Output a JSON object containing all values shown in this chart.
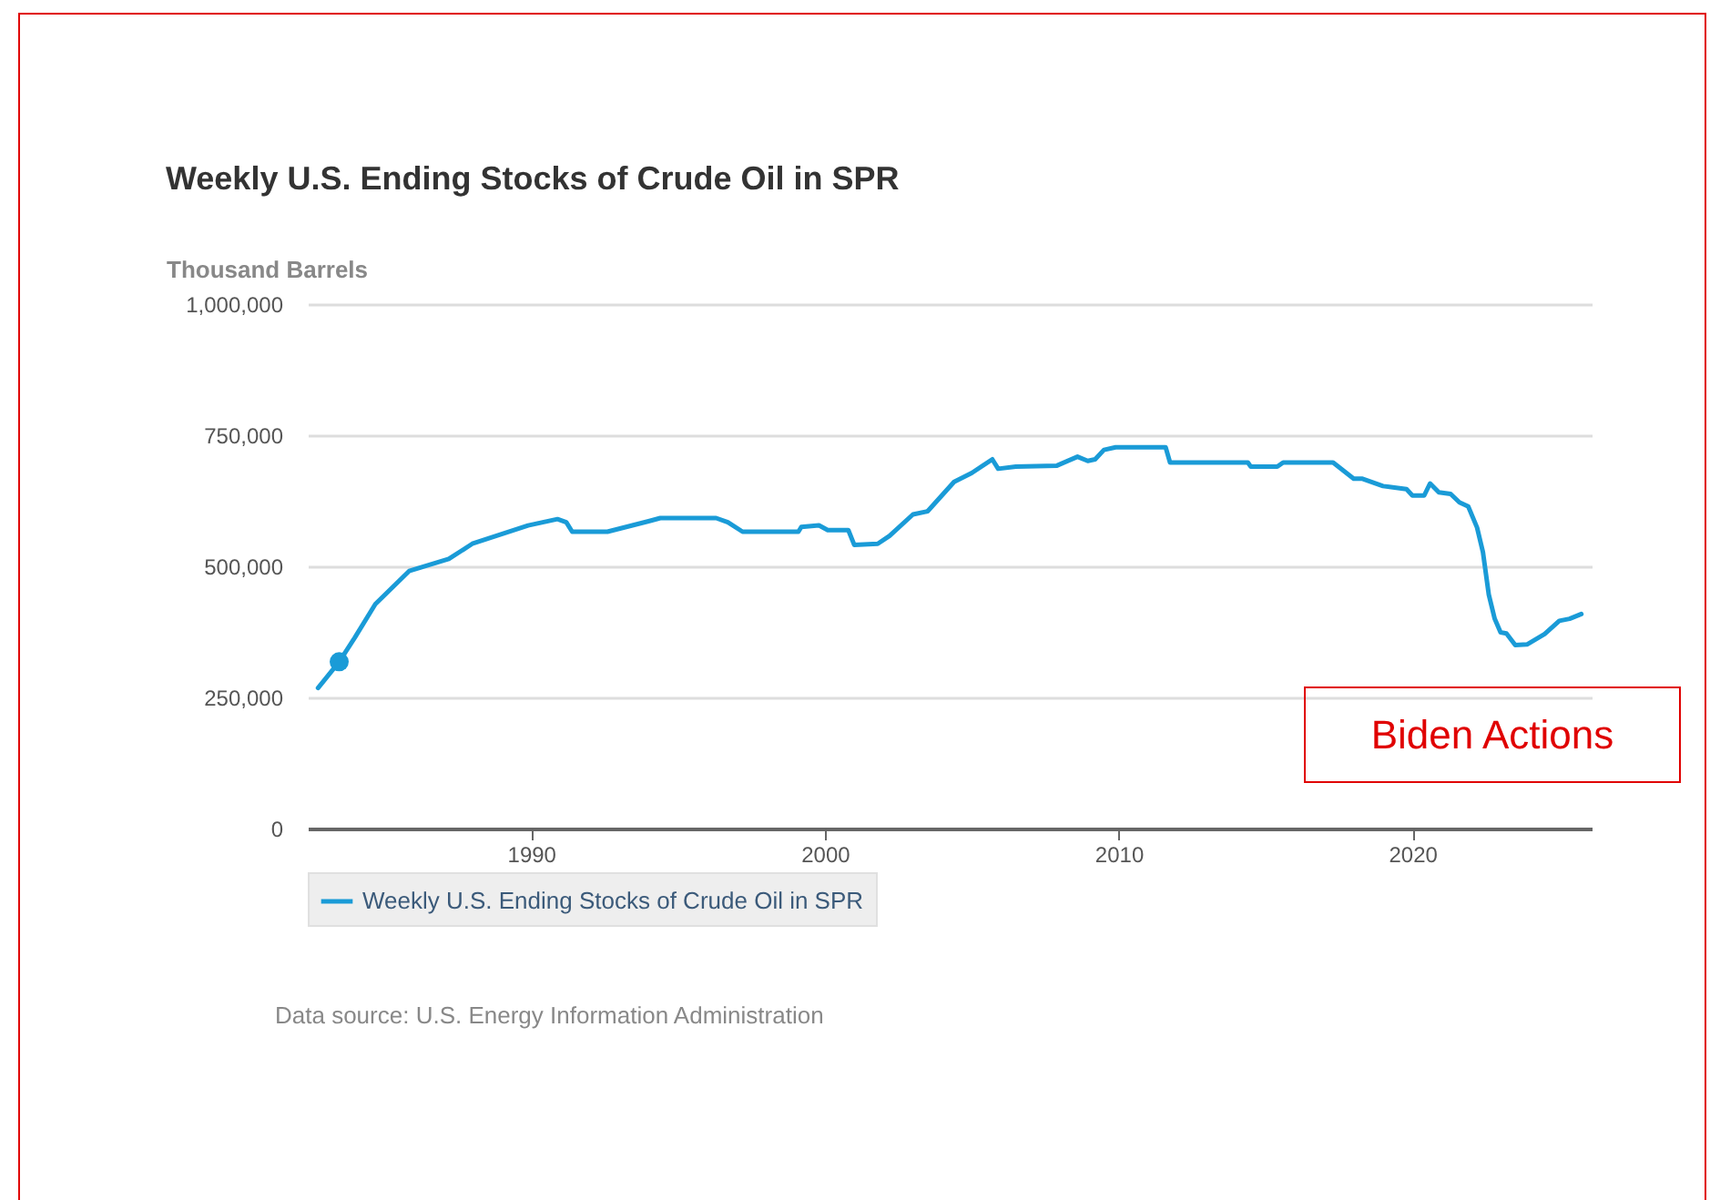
{
  "chart_data": {
    "type": "line",
    "title": "Weekly U.S. Ending Stocks of Crude Oil in SPR",
    "ylabel": "Thousand Barrels",
    "xlim": [
      1982.4,
      2026.1
    ],
    "xticks": [
      1990,
      2000,
      2010,
      2020
    ],
    "ylim": [
      0,
      1000000
    ],
    "yticks": [
      0,
      {
        "value": 250000,
        "label": "250,000"
      },
      {
        "value": 500000,
        "label": "500,000"
      },
      {
        "value": 750000,
        "label": "750,000"
      },
      {
        "value": 1000000,
        "label": "1,000,000"
      }
    ],
    "grid": "y",
    "legend": "bottom",
    "annotations": [
      "Biden Actions",
      "Data source: U.S. Energy Information Administration"
    ],
    "series": [
      {
        "name": "Weekly U.S. Ending Stocks of Crude Oil in SPR",
        "color": "#1a9bd7",
        "x": [
          1982.75,
          1983.47,
          1984.0,
          1984.7,
          1985.85,
          1987.2,
          1988.0,
          1989.9,
          1990.9,
          1991.2,
          1991.4,
          1992.6,
          1994.0,
          1994.4,
          1996.3,
          1996.7,
          1997.2,
          1999.1,
          1999.2,
          1999.8,
          2000.1,
          2000.8,
          2001.0,
          2001.8,
          2002.2,
          2003.0,
          2003.5,
          2004.4,
          2005.0,
          2005.7,
          2005.9,
          2006.5,
          2007.9,
          2008.6,
          2008.95,
          2009.2,
          2009.5,
          2009.9,
          2011.6,
          2011.75,
          2014.4,
          2014.5,
          2015.4,
          2015.6,
          2017.3,
          2018.0,
          2018.3,
          2019.0,
          2019.8,
          2020.0,
          2020.4,
          2020.6,
          2020.9,
          2021.3,
          2021.6,
          2021.9,
          2022.2,
          2022.4,
          2022.6,
          2022.8,
          2023.0,
          2023.2,
          2023.5,
          2023.9,
          2024.5,
          2025.0,
          2025.35,
          2025.75
        ],
        "values": [
          268000,
          318000,
          364000,
          428000,
          491000,
          514000,
          543000,
          578000,
          590000,
          584000,
          566000,
          566000,
          586000,
          592000,
          592000,
          584000,
          566000,
          566000,
          575000,
          578000,
          569000,
          569000,
          541000,
          543000,
          558000,
          599000,
          605000,
          661000,
          678000,
          704000,
          686000,
          690000,
          692000,
          709000,
          701000,
          704000,
          722000,
          727000,
          727000,
          698000,
          698000,
          690000,
          690000,
          698000,
          698000,
          667000,
          667000,
          653000,
          647000,
          635000,
          635000,
          658000,
          641000,
          638000,
          622000,
          614000,
          574000,
          527000,
          446000,
          400000,
          374000,
          372000,
          350000,
          351000,
          371000,
          396000,
          400000,
          409000
        ]
      },
      {
        "type": "scatter",
        "color": "#1a9bd7",
        "x": [
          1983.47
        ],
        "values": [
          318000
        ]
      }
    ]
  }
}
